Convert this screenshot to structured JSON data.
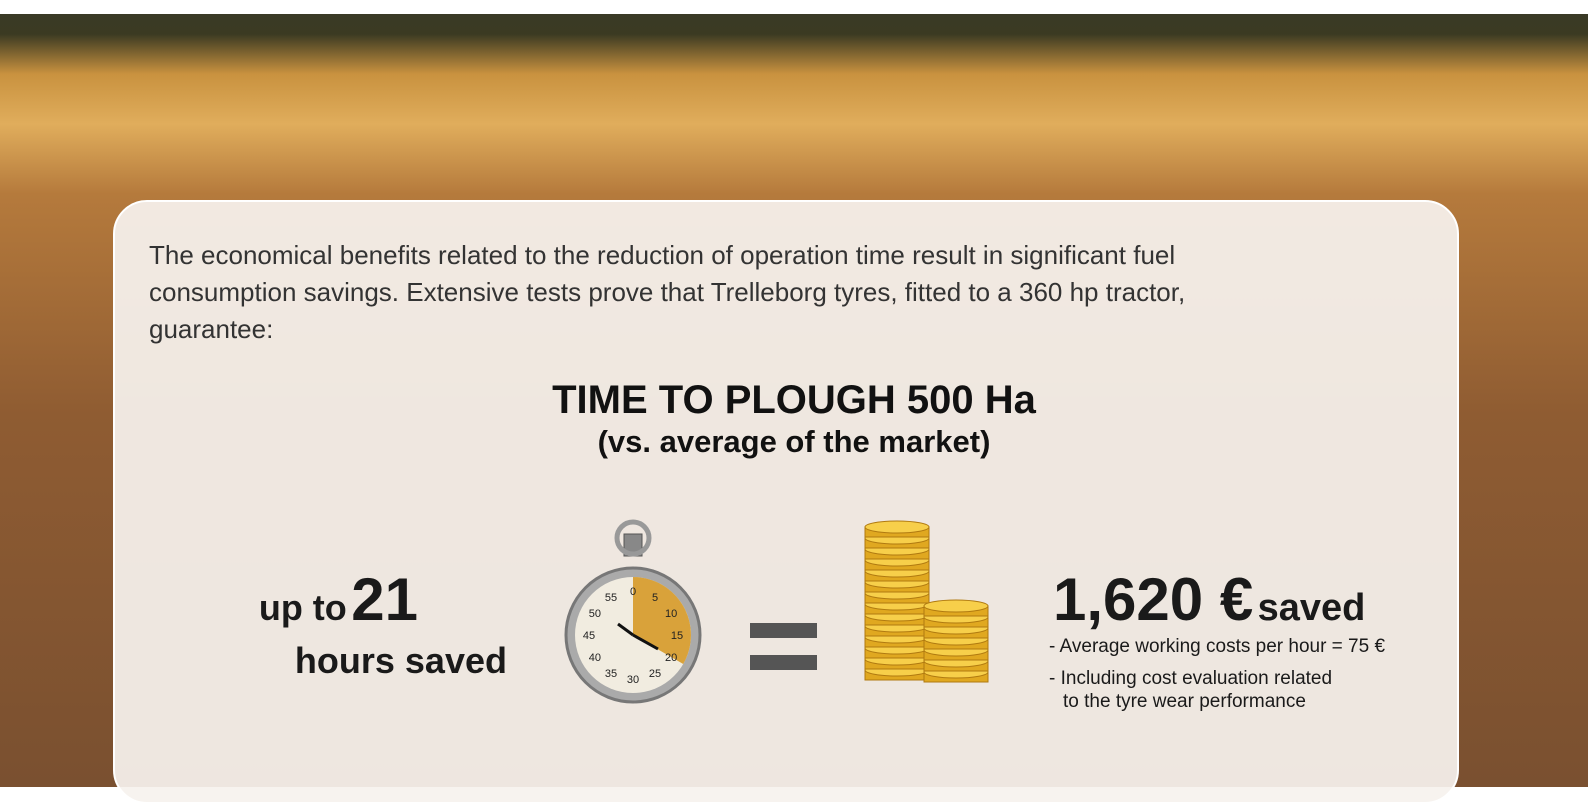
{
  "intro": {
    "lines": [
      "The economical benefits related to the reduction of operation time result in significant fuel",
      "consumption savings. Extensive tests prove that Trelleborg tyres, fitted to a 360 hp tractor,",
      "guarantee:"
    ]
  },
  "heading": {
    "title": "TIME TO PLOUGH 500 Ha",
    "subtitle": "(vs. average of the market)"
  },
  "time": {
    "prefix": "up to",
    "number": "21",
    "suffix": "hours saved"
  },
  "stopwatch": {
    "dial": [
      "0",
      "5",
      "10",
      "15",
      "20",
      "25",
      "30",
      "35",
      "40",
      "45",
      "50",
      "55"
    ]
  },
  "money": {
    "amount": "1,620 €",
    "suffix": "saved",
    "notes": [
      "- Average working costs per hour = 75 €",
      "- Including cost evaluation related",
      "to the tyre wear performance"
    ]
  }
}
